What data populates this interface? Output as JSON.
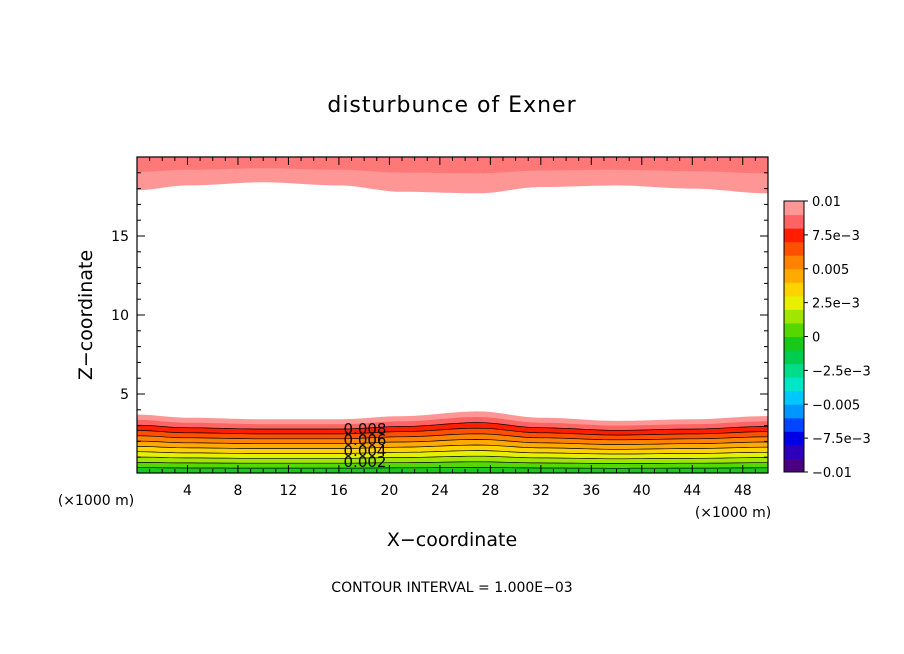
{
  "chart_data": {
    "type": "contour",
    "title": "disturbunce of Exner",
    "xlabel": "X−coordinate",
    "ylabel": "Z−coordinate",
    "x_unit_left": "(×1000 m)",
    "x_unit_right": "(×1000 m)",
    "xlim": [
      0,
      50
    ],
    "ylim": [
      0,
      20
    ],
    "x_ticks": [
      4,
      8,
      12,
      16,
      20,
      24,
      28,
      32,
      36,
      40,
      44,
      48
    ],
    "x_tick_labels": [
      "4",
      "8",
      "12",
      "16",
      "20",
      "24",
      "28",
      "32",
      "36",
      "40",
      "44",
      "48"
    ],
    "y_ticks": [
      5,
      10,
      15
    ],
    "y_tick_labels": [
      "5",
      "10",
      "15"
    ],
    "contour_interval_text": "CONTOUR INTERVAL = 1.000E−03",
    "contour_labels": [
      "0.008",
      "0.006",
      "0.004",
      "0.002"
    ],
    "colorbar": {
      "min": -0.01,
      "max": 0.01,
      "labels": [
        "0.01",
        "7.5e−3",
        "0.005",
        "2.5e−3",
        "0",
        "−2.5e−3",
        "−0.005",
        "−7.5e−3",
        "−0.01"
      ],
      "colors": [
        "#4b0082",
        "#2b00b8",
        "#0000e6",
        "#0046ff",
        "#0096ff",
        "#00c8ff",
        "#00e6c8",
        "#00dc8c",
        "#00cd50",
        "#19c819",
        "#55d700",
        "#a0e600",
        "#e6f000",
        "#ffd200",
        "#ffaa00",
        "#ff8200",
        "#ff5000",
        "#ff1e00",
        "#ff6464",
        "#ff9696"
      ]
    },
    "bottom_layer_levels_x": [
      0,
      4,
      10,
      16,
      21,
      27,
      32,
      38,
      44,
      50
    ],
    "bottom_layer_top_z": [
      3.7,
      3.5,
      3.4,
      3.4,
      3.6,
      3.9,
      3.5,
      3.3,
      3.4,
      3.6
    ],
    "top_layer_bottom_z": [
      17.9,
      18.2,
      18.4,
      18.2,
      17.8,
      17.7,
      18.1,
      18.2,
      18.0,
      17.7
    ]
  }
}
